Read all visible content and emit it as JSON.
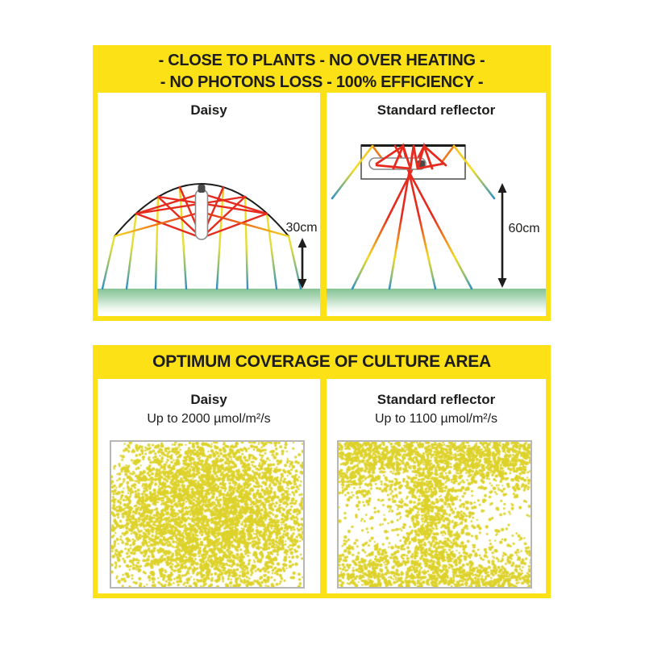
{
  "top_section": {
    "header_line1": "- CLOSE TO PLANTS - NO OVER HEATING -",
    "header_line2": "- NO PHOTONS LOSS - 100% EFFICIENCY -",
    "left_panel": {
      "title": "Daisy",
      "distance_label": "30cm"
    },
    "right_panel": {
      "title": "Standard reflector",
      "distance_label": "60cm"
    }
  },
  "bottom_section": {
    "header": "OPTIMUM COVERAGE OF CULTURE AREA",
    "left_panel": {
      "title": "Daisy",
      "subtitle": "Up to 2000 µmol/m²/s",
      "pattern": "dense-center",
      "dot_attempts": 7000
    },
    "right_panel": {
      "title": "Standard reflector",
      "subtitle": "Up to 1100 µmol/m²/s",
      "pattern": "hourglass",
      "dot_attempts": 6000
    }
  },
  "colors": {
    "frame_yellow": "#fbe116",
    "dot_yellow": "#ddd22b",
    "ray_red": "#e62b1e",
    "ray_orange": "#ee7a1b",
    "ray_yellow": "#f2d91f",
    "ray_teal": "#2e8fc4",
    "ground_green": "#85c394",
    "text_black": "#1d1d1b",
    "scatter_border_gray": "#b7b7b7"
  }
}
